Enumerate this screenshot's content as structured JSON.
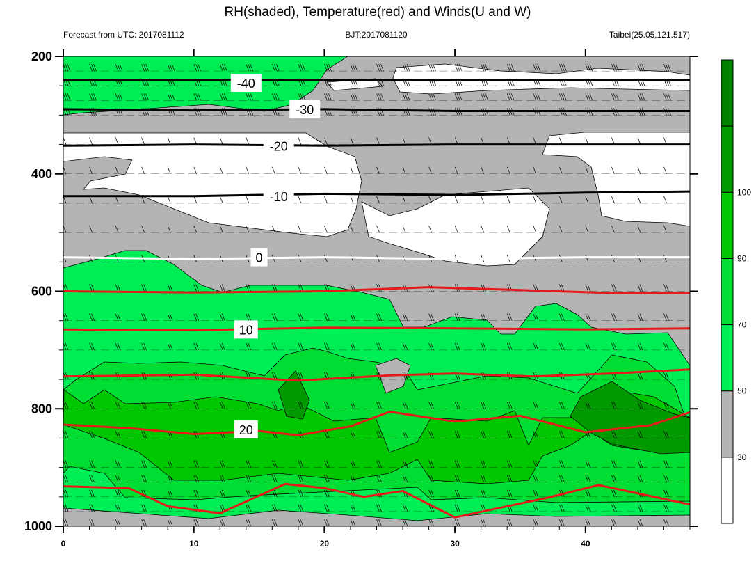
{
  "header": {
    "title": "RH(shaded), Temperature(red) and Winds(U and W)",
    "left_text": "Forecast from UTC: 2017081112",
    "center_text": "BJT:2017081120",
    "right_text": "Taibei(25.05,121.517)"
  },
  "chart_data": {
    "type": "heatmap",
    "x_ticks": [
      "0",
      "10",
      "20",
      "30",
      "40"
    ],
    "x_tick_values": [
      0,
      10,
      20,
      30,
      40
    ],
    "xlim": [
      0,
      48
    ],
    "y_ticks": [
      "200",
      "400",
      "600",
      "800",
      "1000"
    ],
    "y_tick_values": [
      200,
      400,
      600,
      800,
      1000
    ],
    "ylim": [
      1000,
      200
    ],
    "pressure_levels": [
      200,
      225,
      250,
      275,
      300,
      350,
      400,
      450,
      500,
      550,
      600,
      650,
      700,
      750,
      800,
      850,
      900,
      925,
      950,
      975,
      1000
    ],
    "rh_colorbar": {
      "labels": [
        "30",
        "50",
        "70",
        "90",
        "100"
      ],
      "label_values": [
        30,
        50,
        70,
        90,
        100
      ],
      "colors": [
        "#ffffff",
        "#b4b4b4",
        "#00ee55",
        "#00dd33",
        "#00c800",
        "#009a00",
        "#008000"
      ]
    },
    "rh_regions_note_levels": "white <30, grey 30-50, green 50-100 (darker = higher)",
    "colors": {
      "temperature": "#e41a1c",
      "temperature_negative": "#000000",
      "freezing_line": "#ffffff",
      "wind_barb": "#000000"
    },
    "temperature_contours": [
      {
        "label": "-40",
        "label_x": 14,
        "label_p": 245,
        "points": [
          [
            0,
            240
          ],
          [
            10,
            240
          ],
          [
            20,
            240
          ],
          [
            30,
            240
          ],
          [
            40,
            240
          ],
          [
            48,
            240
          ]
        ]
      },
      {
        "label": "-30",
        "label_x": 18.5,
        "label_p": 290,
        "points": [
          [
            0,
            290
          ],
          [
            10,
            292
          ],
          [
            20,
            290
          ],
          [
            30,
            293
          ],
          [
            40,
            293
          ],
          [
            48,
            293
          ]
        ]
      },
      {
        "label": "-20",
        "label_x": 16.5,
        "label_p": 352,
        "points": [
          [
            0,
            352
          ],
          [
            10,
            350
          ],
          [
            20,
            352
          ],
          [
            30,
            350
          ],
          [
            40,
            350
          ],
          [
            48,
            350
          ]
        ]
      },
      {
        "label": "-10",
        "label_x": 16.5,
        "label_p": 438,
        "points": [
          [
            0,
            438
          ],
          [
            10,
            438
          ],
          [
            20,
            434
          ],
          [
            30,
            436
          ],
          [
            40,
            432
          ],
          [
            48,
            430
          ]
        ]
      },
      {
        "label": "0",
        "label_x": 15,
        "label_p": 542,
        "points": [
          [
            0,
            542
          ],
          [
            10,
            545
          ],
          [
            20,
            542
          ],
          [
            30,
            545
          ],
          [
            40,
            542
          ],
          [
            48,
            542
          ]
        ]
      },
      {
        "label": "10",
        "label_x": 14,
        "label_p": 665,
        "points": [
          [
            0,
            665
          ],
          [
            10,
            666
          ],
          [
            20,
            662
          ],
          [
            30,
            663
          ],
          [
            40,
            665
          ],
          [
            48,
            663
          ]
        ]
      },
      {
        "label": "20",
        "label_x": 14,
        "label_p": 835,
        "points": [
          [
            0,
            827
          ],
          [
            5,
            833
          ],
          [
            10,
            843
          ],
          [
            15,
            838
          ],
          [
            18,
            845
          ],
          [
            22,
            830
          ],
          [
            25,
            805
          ],
          [
            30,
            822
          ],
          [
            35,
            812
          ],
          [
            40,
            840
          ],
          [
            45,
            828
          ],
          [
            48,
            806
          ]
        ]
      }
    ],
    "temperature_contours_unlabeled": [
      {
        "points": [
          [
            0,
            600
          ],
          [
            10,
            602
          ],
          [
            20,
            600
          ],
          [
            28,
            593
          ],
          [
            35,
            598
          ],
          [
            42,
            603
          ],
          [
            48,
            603
          ]
        ]
      },
      {
        "points": [
          [
            0,
            745
          ],
          [
            10,
            742
          ],
          [
            18,
            752
          ],
          [
            25,
            743
          ],
          [
            30,
            740
          ],
          [
            36,
            745
          ],
          [
            42,
            740
          ],
          [
            48,
            733
          ]
        ]
      },
      {
        "points": [
          [
            0,
            932
          ],
          [
            5,
            935
          ],
          [
            8,
            966
          ],
          [
            12,
            978
          ],
          [
            17,
            928
          ],
          [
            20,
            935
          ],
          [
            23,
            950
          ],
          [
            26,
            940
          ],
          [
            30,
            985
          ],
          [
            37,
            952
          ],
          [
            41,
            930
          ],
          [
            48,
            963
          ]
        ]
      }
    ]
  }
}
